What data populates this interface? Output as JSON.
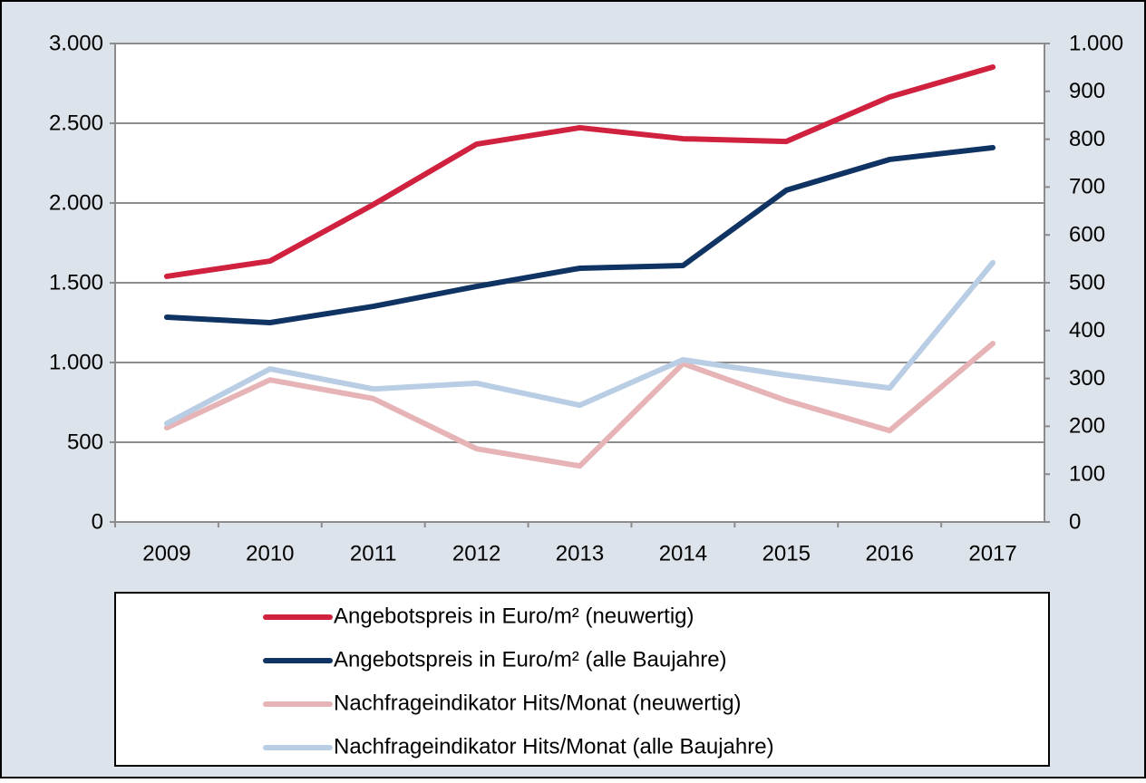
{
  "chart_data": {
    "type": "line",
    "categories": [
      "2009",
      "2010",
      "2011",
      "2012",
      "2013",
      "2014",
      "2015",
      "2016",
      "2017"
    ],
    "ylim": [
      0,
      3000
    ],
    "yticks": [
      0,
      500,
      {
        "value": 1000,
        "label": "1.000"
      },
      {
        "value": 1500,
        "label": "1.500"
      },
      {
        "value": 2000,
        "label": "2.000"
      },
      {
        "value": 2500,
        "label": "2.500"
      },
      {
        "value": 3000,
        "label": "3.000"
      }
    ],
    "y2lim": [
      0,
      1000
    ],
    "y2ticks": [
      0,
      100,
      200,
      300,
      400,
      500,
      600,
      700,
      800,
      900,
      {
        "value": 1000,
        "label": "1.000"
      }
    ],
    "grid": true,
    "legend": "bottom",
    "series": [
      {
        "name": "Angebotspreis in Euro/m² (neuwertig)",
        "color": "#d0213f",
        "values": [
          1540,
          1636,
          1990,
          2369,
          2472,
          2403,
          2386,
          2665,
          2852
        ]
      },
      {
        "name": "Angebotspreis in Euro/m² (alle Baujahre)",
        "color": "#0f3362",
        "values": [
          1284,
          1250,
          1352,
          1477,
          1591,
          1608,
          2080,
          2273,
          2347
        ]
      },
      {
        "name": "Nachfrageindikator Hits/Monat (neuwertig)",
        "color": "#e6b4b6",
        "axis": "y2",
        "values": [
          197,
          297,
          258,
          153,
          117,
          331,
          254,
          191,
          373
        ]
      },
      {
        "name": "Nachfrageindikator Hits/Monat (alle Baujahre)",
        "color": "#b9cde4",
        "axis": "y2",
        "values": [
          206,
          320,
          278,
          290,
          244,
          339,
          307,
          280,
          542
        ]
      }
    ]
  }
}
